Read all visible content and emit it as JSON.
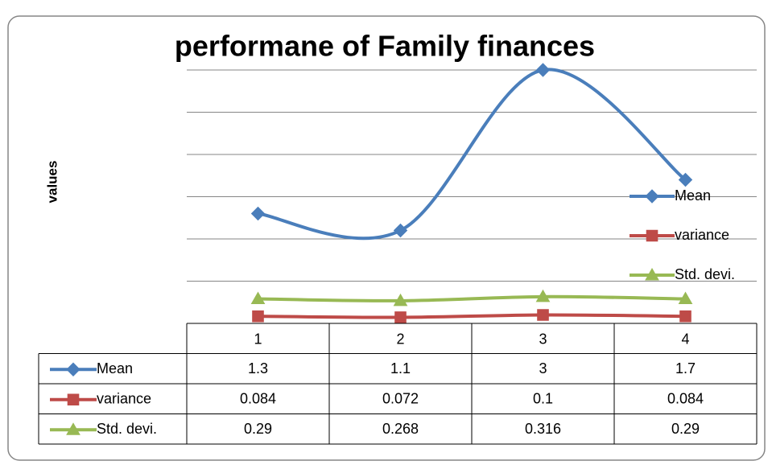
{
  "chart_data": {
    "type": "line",
    "title": "performane of Family finances",
    "y_label": "values",
    "categories": [
      "1",
      "2",
      "3",
      "4"
    ],
    "series": [
      {
        "name": "Mean",
        "color": "#4a7ebb",
        "marker": "diamond",
        "values": [
          1.3,
          1.1,
          3,
          1.7
        ]
      },
      {
        "name": "variance",
        "color": "#be4b48",
        "marker": "square",
        "values": [
          0.084,
          0.072,
          0.1,
          0.084
        ]
      },
      {
        "name": "Std. devi.",
        "color": "#98b954",
        "marker": "triangle",
        "values": [
          0.29,
          0.268,
          0.316,
          0.29
        ]
      }
    ],
    "ylim": [
      0,
      3
    ],
    "yticks": [
      0.5,
      1,
      1.5,
      2,
      2.5,
      3
    ],
    "grid": true,
    "smooth": true,
    "legend": "right",
    "data_table": true
  }
}
